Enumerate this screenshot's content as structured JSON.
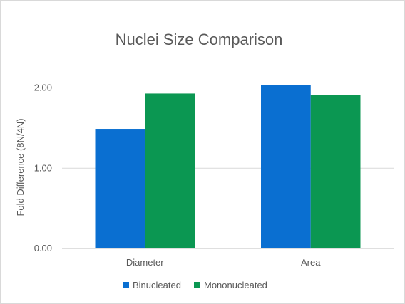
{
  "chart_data": {
    "type": "bar",
    "title": "Nuclei Size Comparison",
    "xlabel": "",
    "ylabel": "Fold Difference (8N/4N)",
    "categories": [
      "Diameter",
      "Area"
    ],
    "series": [
      {
        "name": "Binucleated",
        "color": "#0a6fd1",
        "values": [
          1.49,
          2.04
        ]
      },
      {
        "name": "Mononucleated",
        "color": "#0b9752",
        "values": [
          1.93,
          1.91
        ]
      }
    ],
    "ylim": [
      0,
      2.2
    ],
    "yticks": [
      0,
      1,
      2
    ],
    "ytick_labels": [
      "0.00",
      "1.00",
      "2.00"
    ],
    "grid": true,
    "legend_position": "bottom"
  }
}
